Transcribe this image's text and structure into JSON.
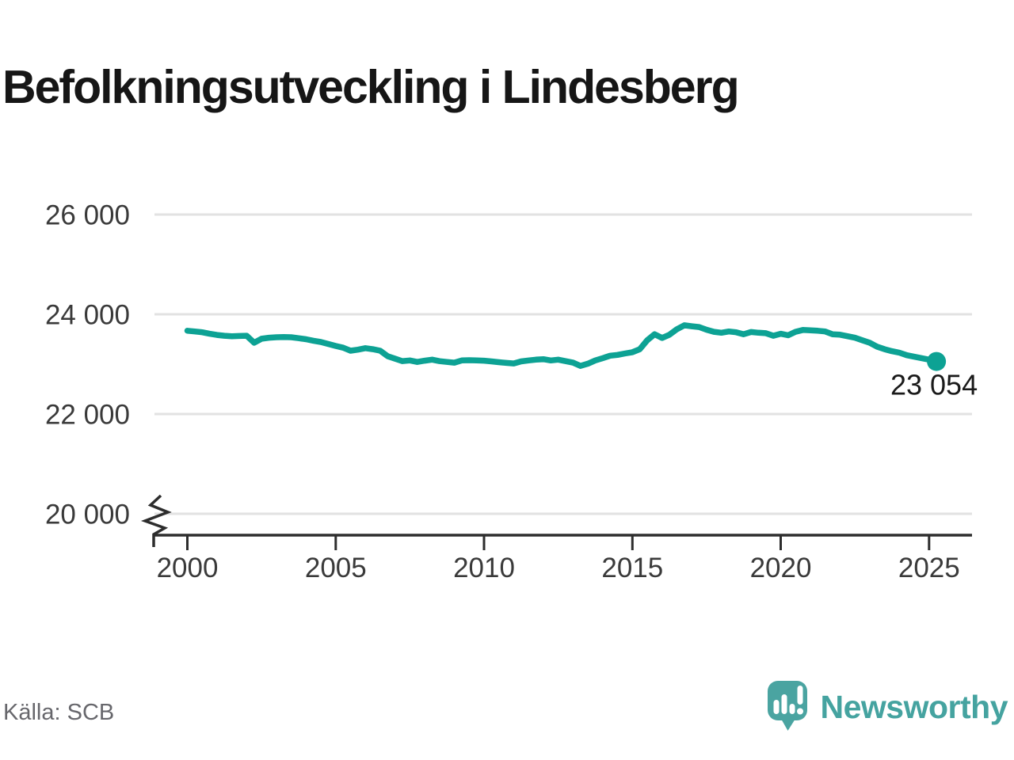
{
  "title": "Befolkningsutveckling i Lindesberg",
  "source": "Källa: SCB",
  "logo": {
    "text": "Newsworthy",
    "icon": "speech-bubble-bar-chart"
  },
  "colors": {
    "line": "#0da294",
    "end_marker": "#0da294",
    "logo_teal": "#45a3a0",
    "grid": "#e2e2e2",
    "axis": "#2d2d2d",
    "tick_text": "#3a3a3a",
    "title_text": "#161616",
    "source_text": "#67676c",
    "background": "#ffffff"
  },
  "chart_data": {
    "type": "line",
    "title": "Befolkningsutveckling i Lindesberg",
    "series_name": "Befolkning i Lindesberg",
    "xlabel": "",
    "ylabel": "",
    "x_ticks": [
      2000,
      2005,
      2010,
      2015,
      2020,
      2025
    ],
    "x_tick_labels": [
      "2000",
      "2005",
      "2010",
      "2015",
      "2020",
      "2025"
    ],
    "y_ticks": [
      20000,
      22000,
      24000,
      26000
    ],
    "y_tick_labels": [
      "20 000",
      "22 000",
      "24 000",
      "26 000"
    ],
    "ylim": [
      20000,
      26000
    ],
    "xlim": [
      2000,
      2026.5
    ],
    "y_axis_break": true,
    "grid": "horizontal",
    "legend": "none",
    "end_point": {
      "x": 2025.25,
      "value": 23054,
      "label": "23 054"
    },
    "x": [
      2000.0,
      2000.25,
      2000.5,
      2000.75,
      2001.0,
      2001.25,
      2001.5,
      2001.75,
      2002.0,
      2002.25,
      2002.5,
      2002.75,
      2003.0,
      2003.25,
      2003.5,
      2003.75,
      2004.0,
      2004.25,
      2004.5,
      2004.75,
      2005.0,
      2005.25,
      2005.5,
      2005.75,
      2006.0,
      2006.25,
      2006.5,
      2006.75,
      2007.0,
      2007.25,
      2007.5,
      2007.75,
      2008.0,
      2008.25,
      2008.5,
      2008.75,
      2009.0,
      2009.25,
      2009.5,
      2009.75,
      2010.0,
      2010.25,
      2010.5,
      2010.75,
      2011.0,
      2011.25,
      2011.5,
      2011.75,
      2012.0,
      2012.25,
      2012.5,
      2012.75,
      2013.0,
      2013.25,
      2013.5,
      2013.75,
      2014.0,
      2014.25,
      2014.5,
      2014.75,
      2015.0,
      2015.25,
      2015.5,
      2015.75,
      2016.0,
      2016.25,
      2016.5,
      2016.75,
      2017.0,
      2017.25,
      2017.5,
      2017.75,
      2018.0,
      2018.25,
      2018.5,
      2018.75,
      2019.0,
      2019.25,
      2019.5,
      2019.75,
      2020.0,
      2020.25,
      2020.5,
      2020.75,
      2021.0,
      2021.25,
      2021.5,
      2021.75,
      2022.0,
      2022.25,
      2022.5,
      2022.75,
      2023.0,
      2023.25,
      2023.5,
      2023.75,
      2024.0,
      2024.25,
      2024.5,
      2024.75,
      2025.0,
      2025.25
    ],
    "values": [
      23670,
      23655,
      23640,
      23610,
      23585,
      23570,
      23560,
      23565,
      23570,
      23430,
      23510,
      23530,
      23540,
      23545,
      23540,
      23520,
      23500,
      23470,
      23445,
      23405,
      23365,
      23330,
      23270,
      23290,
      23320,
      23300,
      23270,
      23160,
      23110,
      23060,
      23075,
      23045,
      23070,
      23090,
      23060,
      23045,
      23030,
      23075,
      23080,
      23075,
      23070,
      23055,
      23040,
      23025,
      23015,
      23055,
      23075,
      23090,
      23100,
      23075,
      23090,
      23060,
      23030,
      22965,
      23010,
      23075,
      23120,
      23170,
      23185,
      23215,
      23240,
      23300,
      23480,
      23600,
      23525,
      23590,
      23700,
      23780,
      23760,
      23745,
      23690,
      23650,
      23630,
      23655,
      23640,
      23600,
      23645,
      23630,
      23620,
      23570,
      23610,
      23580,
      23650,
      23685,
      23680,
      23670,
      23655,
      23600,
      23590,
      23560,
      23530,
      23480,
      23430,
      23350,
      23300,
      23260,
      23230,
      23180,
      23150,
      23120,
      23090,
      23054
    ]
  }
}
